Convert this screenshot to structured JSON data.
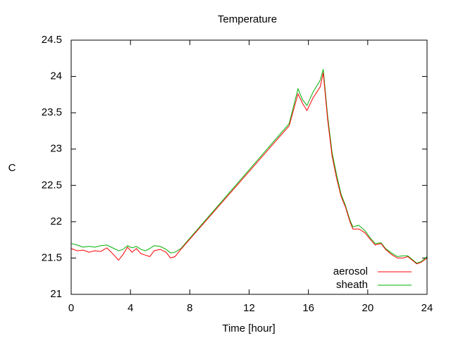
{
  "chart_data": {
    "type": "line",
    "title": "Temperature",
    "xlabel": "Time [hour]",
    "ylabel": "C",
    "xlim": [
      0,
      24
    ],
    "ylim": [
      21,
      24.5
    ],
    "xticks": [
      0,
      4,
      8,
      12,
      16,
      20,
      24
    ],
    "yticks": [
      21,
      21.5,
      22,
      22.5,
      23,
      23.5,
      24,
      24.5
    ],
    "xtick_labels": [
      "0",
      "4",
      "8",
      "12",
      "16",
      "20",
      "24"
    ],
    "ytick_labels": [
      "21",
      "21.5",
      "22",
      "22.5",
      "23",
      "23.5",
      "24",
      "24.5"
    ],
    "grid": false,
    "legend_position": "bottom-right",
    "series": [
      {
        "name": "aerosol",
        "color": "#ff0000",
        "points": [
          [
            0,
            21.63
          ],
          [
            0.4,
            21.6
          ],
          [
            0.8,
            21.61
          ],
          [
            1.2,
            21.58
          ],
          [
            1.6,
            21.6
          ],
          [
            2,
            21.59
          ],
          [
            2.4,
            21.64
          ],
          [
            2.8,
            21.56
          ],
          [
            3.2,
            21.47
          ],
          [
            3.5,
            21.55
          ],
          [
            3.8,
            21.65
          ],
          [
            4.1,
            21.58
          ],
          [
            4.4,
            21.63
          ],
          [
            4.7,
            21.56
          ],
          [
            5,
            21.54
          ],
          [
            5.3,
            21.52
          ],
          [
            5.6,
            21.6
          ],
          [
            6,
            21.62
          ],
          [
            6.4,
            21.58
          ],
          [
            6.7,
            21.5
          ],
          [
            7,
            21.52
          ],
          [
            7.4,
            21.62
          ],
          [
            14.7,
            23.32
          ],
          [
            15.3,
            23.76
          ],
          [
            15.6,
            23.63
          ],
          [
            15.9,
            23.53
          ],
          [
            16.3,
            23.7
          ],
          [
            16.8,
            23.86
          ],
          [
            17.0,
            24.05
          ],
          [
            17.3,
            23.4
          ],
          [
            17.6,
            22.9
          ],
          [
            17.9,
            22.6
          ],
          [
            18.2,
            22.35
          ],
          [
            18.5,
            22.2
          ],
          [
            18.8,
            22
          ],
          [
            19.0,
            21.9
          ],
          [
            19.4,
            21.9
          ],
          [
            19.8,
            21.85
          ],
          [
            20.2,
            21.75
          ],
          [
            20.5,
            21.68
          ],
          [
            20.9,
            21.7
          ],
          [
            21.2,
            21.62
          ],
          [
            21.6,
            21.55
          ],
          [
            22.0,
            21.5
          ],
          [
            22.4,
            21.5
          ],
          [
            22.7,
            21.52
          ],
          [
            23.0,
            21.47
          ],
          [
            23.3,
            21.42
          ],
          [
            23.6,
            21.44
          ],
          [
            24,
            21.5
          ]
        ]
      },
      {
        "name": "sheath",
        "color": "#00b000",
        "points": [
          [
            0,
            21.7
          ],
          [
            0.4,
            21.68
          ],
          [
            0.8,
            21.65
          ],
          [
            1.2,
            21.66
          ],
          [
            1.6,
            21.65
          ],
          [
            2,
            21.67
          ],
          [
            2.4,
            21.68
          ],
          [
            2.8,
            21.64
          ],
          [
            3.2,
            21.6
          ],
          [
            3.5,
            21.62
          ],
          [
            3.8,
            21.67
          ],
          [
            4.1,
            21.64
          ],
          [
            4.4,
            21.66
          ],
          [
            4.7,
            21.62
          ],
          [
            5,
            21.6
          ],
          [
            5.3,
            21.63
          ],
          [
            5.6,
            21.67
          ],
          [
            6,
            21.66
          ],
          [
            6.4,
            21.62
          ],
          [
            6.7,
            21.57
          ],
          [
            7,
            21.58
          ],
          [
            7.4,
            21.63
          ],
          [
            14.7,
            23.35
          ],
          [
            15.3,
            23.83
          ],
          [
            15.6,
            23.68
          ],
          [
            15.9,
            23.6
          ],
          [
            16.3,
            23.78
          ],
          [
            16.8,
            23.95
          ],
          [
            17.0,
            24.1
          ],
          [
            17.3,
            23.45
          ],
          [
            17.6,
            22.95
          ],
          [
            17.9,
            22.65
          ],
          [
            18.2,
            22.38
          ],
          [
            18.5,
            22.22
          ],
          [
            18.8,
            22.02
          ],
          [
            19.0,
            21.93
          ],
          [
            19.4,
            21.95
          ],
          [
            19.8,
            21.88
          ],
          [
            20.2,
            21.77
          ],
          [
            20.5,
            21.7
          ],
          [
            20.9,
            21.71
          ],
          [
            21.2,
            21.63
          ],
          [
            21.6,
            21.57
          ],
          [
            22.0,
            21.52
          ],
          [
            22.4,
            21.53
          ],
          [
            22.7,
            21.53
          ],
          [
            23.0,
            21.48
          ],
          [
            23.3,
            21.43
          ],
          [
            23.6,
            21.45
          ],
          [
            24,
            21.52
          ]
        ]
      }
    ]
  }
}
